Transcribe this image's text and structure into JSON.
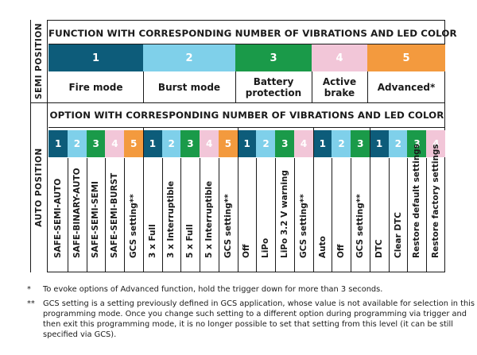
{
  "semi": {
    "side_label": "SEMI POSITION",
    "title": "FUNCTION WITH CORRESPONDING NUMBER OF VIBRATIONS AND LED COLOR",
    "functions": [
      {
        "num": "1",
        "name": "Fire mode",
        "color": "#0d5c7a"
      },
      {
        "num": "2",
        "name": "Burst mode",
        "color": "#7fd0ea"
      },
      {
        "num": "3",
        "name": "Battery protection",
        "color": "#1a9a49"
      },
      {
        "num": "4",
        "name": "Active brake",
        "color": "#f2c6d8"
      },
      {
        "num": "5",
        "name": "Advanced*",
        "color": "#f39a3e"
      }
    ]
  },
  "auto": {
    "side_label": "AUTO POSITION",
    "title": "OPTION WITH CORRESPONDING NUMBER OF VIBRATIONS AND LED COLOR",
    "options": [
      {
        "num": "1",
        "label": "SAFE-SEMI-AUTO",
        "color": "#0d5c7a"
      },
      {
        "num": "2",
        "label": "SAFE-BINARY-AUTO",
        "color": "#7fd0ea"
      },
      {
        "num": "3",
        "label": "SAFE-SEMI-SEMI",
        "color": "#1a9a49"
      },
      {
        "num": "4",
        "label": "SAFE-SEMI-BURST",
        "color": "#f2c6d8"
      },
      {
        "num": "5",
        "label": "GCS setting**",
        "color": "#f39a3e"
      },
      {
        "num": "1",
        "label": "3 x Full",
        "color": "#0d5c7a"
      },
      {
        "num": "2",
        "label": "3 x Interruptible",
        "color": "#7fd0ea"
      },
      {
        "num": "3",
        "label": "5 x Full",
        "color": "#1a9a49"
      },
      {
        "num": "4",
        "label": "5 x Interruptible",
        "color": "#f2c6d8"
      },
      {
        "num": "5",
        "label": "GCS setting**",
        "color": "#f39a3e"
      },
      {
        "num": "1",
        "label": "Off",
        "color": "#0d5c7a"
      },
      {
        "num": "2",
        "label": "LiPo",
        "color": "#7fd0ea"
      },
      {
        "num": "3",
        "label": "LiPo 3.2 V warning",
        "color": "#1a9a49"
      },
      {
        "num": "4",
        "label": "GCS setting**",
        "color": "#f2c6d8"
      },
      {
        "num": "1",
        "label": "Auto",
        "color": "#0d5c7a"
      },
      {
        "num": "2",
        "label": "Off",
        "color": "#7fd0ea"
      },
      {
        "num": "3",
        "label": "GCS setting**",
        "color": "#1a9a49"
      },
      {
        "num": "1",
        "label": "DTC",
        "color": "#0d5c7a"
      },
      {
        "num": "2",
        "label": "Clear DTC",
        "color": "#7fd0ea"
      },
      {
        "num": "3",
        "label": "Restore default settings",
        "color": "#1a9a49"
      },
      {
        "num": "4",
        "label": "Restore factory settings",
        "color": "#f2c6d8"
      }
    ]
  },
  "notes": [
    {
      "mark": "*",
      "text": "To evoke options of Advanced function, hold the trigger down for more than 3 seconds."
    },
    {
      "mark": "**",
      "text": "GCS setting is a setting previously defined in GCS application, whose value is not available for selection in this programming mode. Once you change such setting to a different option during programming via trigger and then exit this programming mode, it is no longer possible to set that setting from this level (it can be still specified via GCS)."
    }
  ]
}
